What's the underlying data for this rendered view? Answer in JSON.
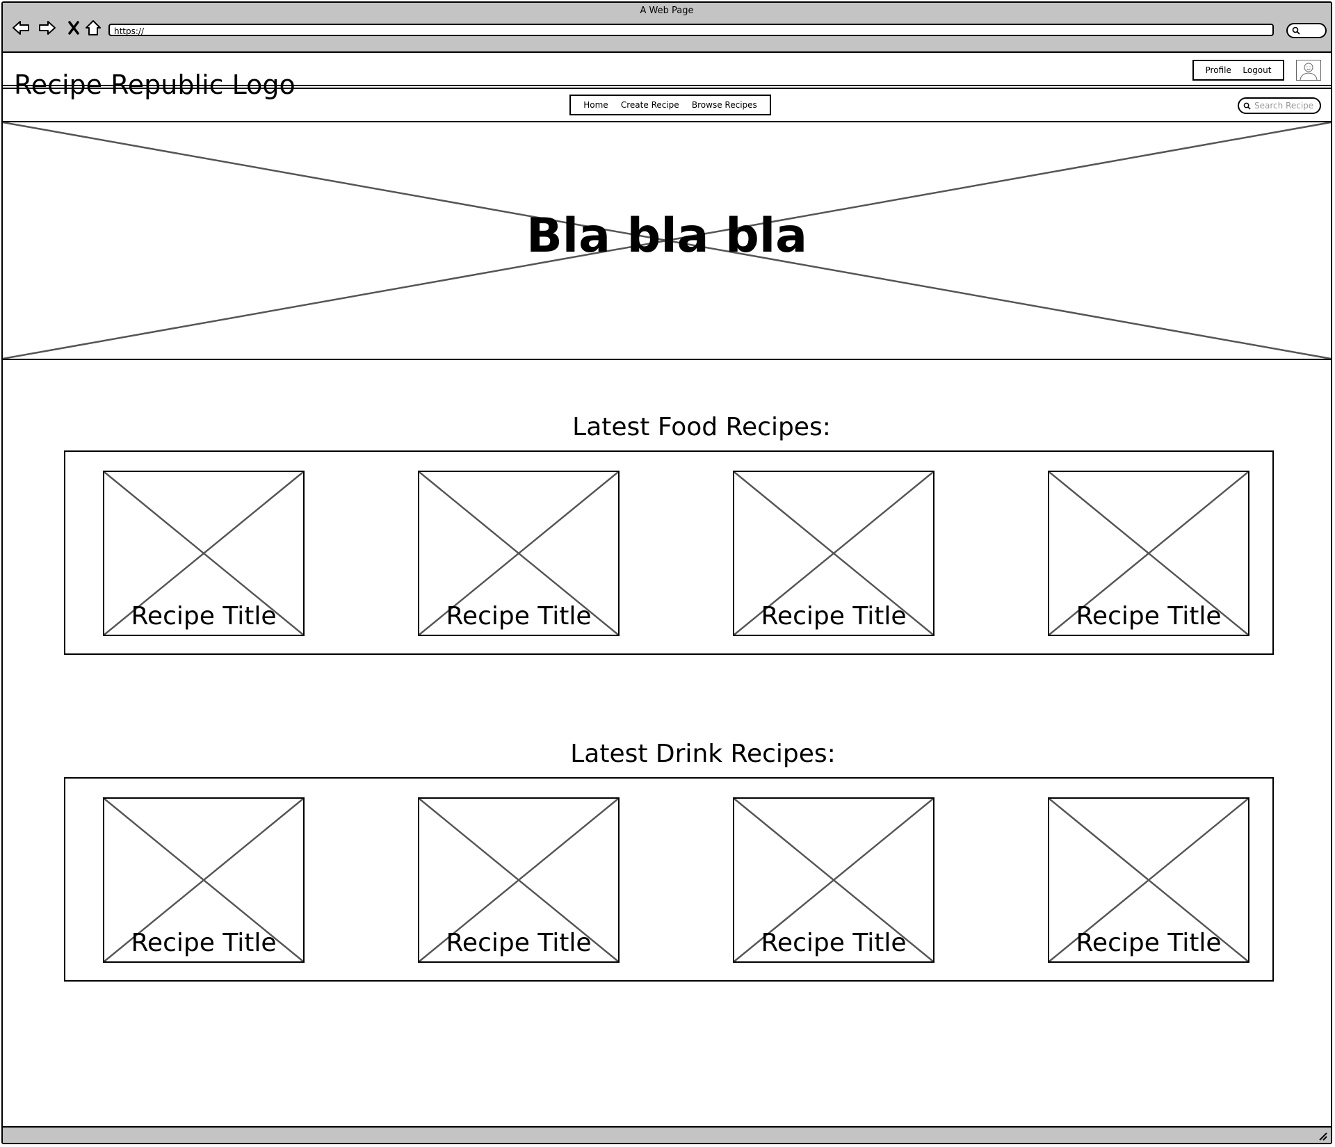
{
  "window": {
    "title": "A Web Page",
    "url": "https://"
  },
  "header": {
    "logo": "Recipe Republic Logo",
    "profile_label": "Profile",
    "logout_label": "Logout",
    "nav": [
      {
        "label": "Home"
      },
      {
        "label": "Create Recipe"
      },
      {
        "label": "Browse Recipes"
      }
    ],
    "search_placeholder": "Search Recipe"
  },
  "hero": {
    "text": "Bla bla bla"
  },
  "food": {
    "title": "Latest Food Recipes:",
    "cards": [
      {
        "title": "Recipe Title"
      },
      {
        "title": "Recipe Title"
      },
      {
        "title": "Recipe Title"
      },
      {
        "title": "Recipe Title"
      }
    ]
  },
  "drinks": {
    "title": "Latest Drink Recipes:",
    "cards": [
      {
        "title": "Recipe Title"
      },
      {
        "title": "Recipe Title"
      },
      {
        "title": "Recipe Title"
      },
      {
        "title": "Recipe Title"
      }
    ]
  },
  "icons": {
    "back": "back-arrow-icon",
    "forward": "forward-arrow-icon",
    "stop": "close-icon",
    "home": "home-icon",
    "search": "search-icon",
    "avatar": "user-avatar-icon",
    "resize": "resize-grip-icon"
  }
}
